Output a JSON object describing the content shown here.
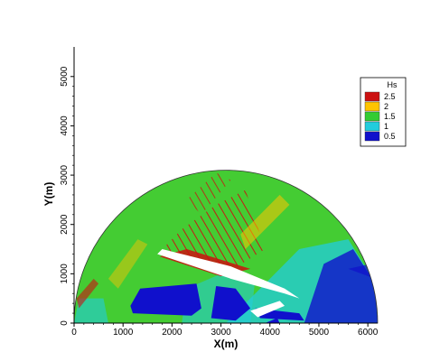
{
  "chart_data": {
    "type": "heatmap",
    "xlabel": "X(m)",
    "ylabel": "Y(m)",
    "xlim": [
      0,
      6200
    ],
    "ylim": [
      0,
      5600
    ],
    "x_ticks": [
      0,
      1000,
      2000,
      3000,
      4000,
      5000,
      6000
    ],
    "y_ticks": [
      0,
      1000,
      2000,
      3000,
      4000,
      5000
    ],
    "legend": {
      "title": "Hs",
      "levels": [
        {
          "value": 2.5,
          "label": "2.5",
          "color": "#cc1111"
        },
        {
          "value": 2.0,
          "label": "2",
          "color": "#ffc400"
        },
        {
          "value": 1.5,
          "label": "1.5",
          "color": "#33cc33"
        },
        {
          "value": 1.0,
          "label": "1",
          "color": "#22ccdd"
        },
        {
          "value": 0.5,
          "label": "0.5",
          "color": "#1010cc"
        }
      ],
      "placement": "top-right"
    },
    "domain": {
      "shape": "semicircle",
      "center_x": 3100,
      "center_y": 0,
      "radius": 3100
    },
    "grid": false
  }
}
